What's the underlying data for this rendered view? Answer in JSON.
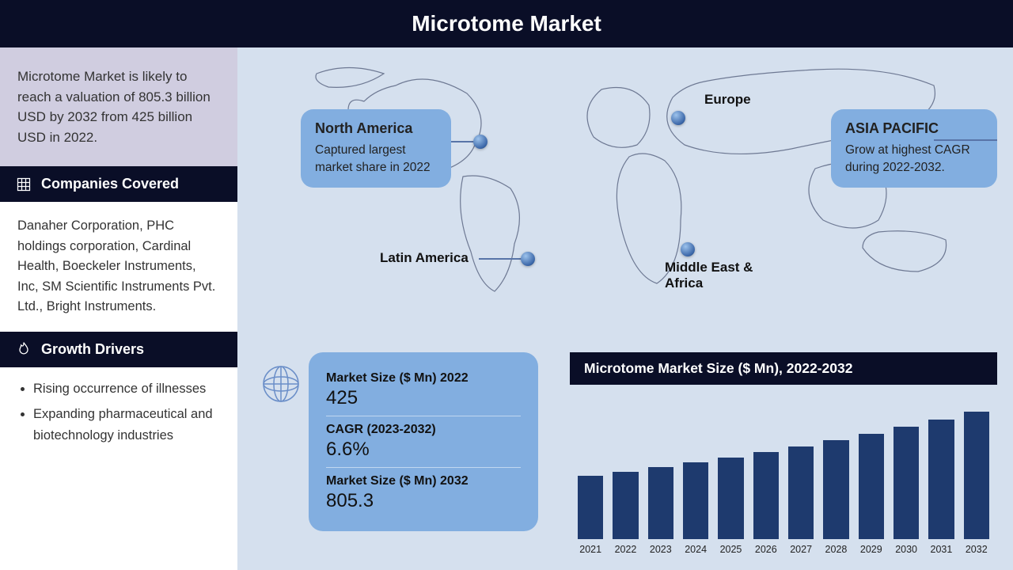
{
  "title": "Microtome Market",
  "colors": {
    "header_bg": "#0a0e27",
    "page_bg": "#d5e0ee",
    "summary_bg": "#d0cde0",
    "card_bg": "#82aee0",
    "bar_color": "#1e3a6e",
    "text": "#333333"
  },
  "sidebar": {
    "summary": "Microtome Market is likely to reach a valuation of 805.3 billion USD by 2032 from 425 billion USD in 2022.",
    "companies_head": "Companies Covered",
    "companies_text": "Danaher Corporation, PHC holdings corporation, Cardinal Health, Boeckeler Instruments, Inc, SM Scientific Instruments Pvt. Ltd., Bright Instruments.",
    "drivers_head": "Growth Drivers",
    "drivers": [
      "Rising occurrence of illnesses",
      "Expanding pharmaceutical and biotechnology industries"
    ]
  },
  "map": {
    "north_america": {
      "title": "North America",
      "desc": "Captured largest market share in 2022"
    },
    "europe_label": "Europe",
    "asia": {
      "title": "ASIA PACIFIC",
      "desc": "Grow at highest CAGR during 2022-2032."
    },
    "latin_label": "Latin America",
    "mea_label": "Middle East & Africa"
  },
  "stats": {
    "size2022_label": "Market Size ($ Mn) 2022",
    "size2022_value": "425",
    "cagr_label": "CAGR (2023-2032)",
    "cagr_value": "6.6%",
    "size2032_label": "Market Size ($ Mn) 2032",
    "size2032_value": "805.3"
  },
  "chart": {
    "type": "bar",
    "title": "Microtome Market Size ($ Mn), 2022-2032",
    "categories": [
      "2021",
      "2022",
      "2023",
      "2024",
      "2025",
      "2026",
      "2027",
      "2028",
      "2029",
      "2030",
      "2031",
      "2032"
    ],
    "values": [
      398,
      425,
      453,
      483,
      515,
      549,
      585,
      624,
      665,
      709,
      756,
      805
    ],
    "ylim": [
      0,
      900
    ],
    "bar_color": "#1e3a6e",
    "bar_width": 0.72,
    "title_fontsize": 17.5,
    "x_fontsize": 12.5,
    "background_color": "#d5e0ee"
  }
}
